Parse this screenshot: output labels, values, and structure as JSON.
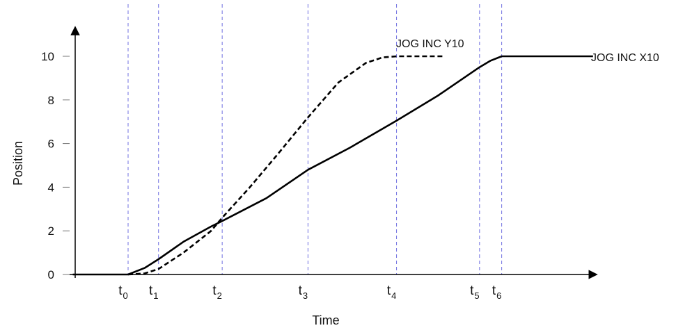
{
  "chart_data": {
    "type": "line",
    "xlabel": "Time",
    "ylabel": "Position",
    "ylim": [
      0,
      11
    ],
    "y_ticks": [
      0,
      2,
      4,
      6,
      8,
      10
    ],
    "grid": false,
    "legend": "none",
    "time_markers": [
      {
        "base": "t",
        "sub": "0",
        "x": 0
      },
      {
        "base": "t",
        "sub": "1",
        "x": 0.55
      },
      {
        "base": "t",
        "sub": "2",
        "x": 1.7
      },
      {
        "base": "t",
        "sub": "3",
        "x": 3.25
      },
      {
        "base": "t",
        "sub": "4",
        "x": 4.85
      },
      {
        "base": "t",
        "sub": "5",
        "x": 6.35
      },
      {
        "base": "t",
        "sub": "6",
        "x": 6.75
      }
    ],
    "marker_line_color": "#6f6fe0",
    "series": [
      {
        "name": "JOG INC X10",
        "style": "solid",
        "color": "#000000",
        "points": [
          [
            -1.0,
            0
          ],
          [
            0,
            0
          ],
          [
            0.3,
            0.3
          ],
          [
            0.55,
            0.7
          ],
          [
            1.0,
            1.5
          ],
          [
            1.5,
            2.2
          ],
          [
            1.7,
            2.45
          ],
          [
            2.5,
            3.5
          ],
          [
            3.25,
            4.8
          ],
          [
            4.0,
            5.8
          ],
          [
            4.85,
            7.05
          ],
          [
            5.6,
            8.2
          ],
          [
            6.35,
            9.5
          ],
          [
            6.55,
            9.8
          ],
          [
            6.75,
            10.0
          ],
          [
            8.4,
            10.0
          ]
        ]
      },
      {
        "name": "JOG INC Y10",
        "style": "dashed",
        "color": "#000000",
        "points": [
          [
            0,
            0
          ],
          [
            0.3,
            0.05
          ],
          [
            0.55,
            0.25
          ],
          [
            1.0,
            1.0
          ],
          [
            1.5,
            2.0
          ],
          [
            1.7,
            2.6
          ],
          [
            2.2,
            4.0
          ],
          [
            2.7,
            5.5
          ],
          [
            3.25,
            7.2
          ],
          [
            3.8,
            8.8
          ],
          [
            4.3,
            9.7
          ],
          [
            4.6,
            9.95
          ],
          [
            4.85,
            10.0
          ],
          [
            5.7,
            10.0
          ]
        ]
      }
    ]
  }
}
